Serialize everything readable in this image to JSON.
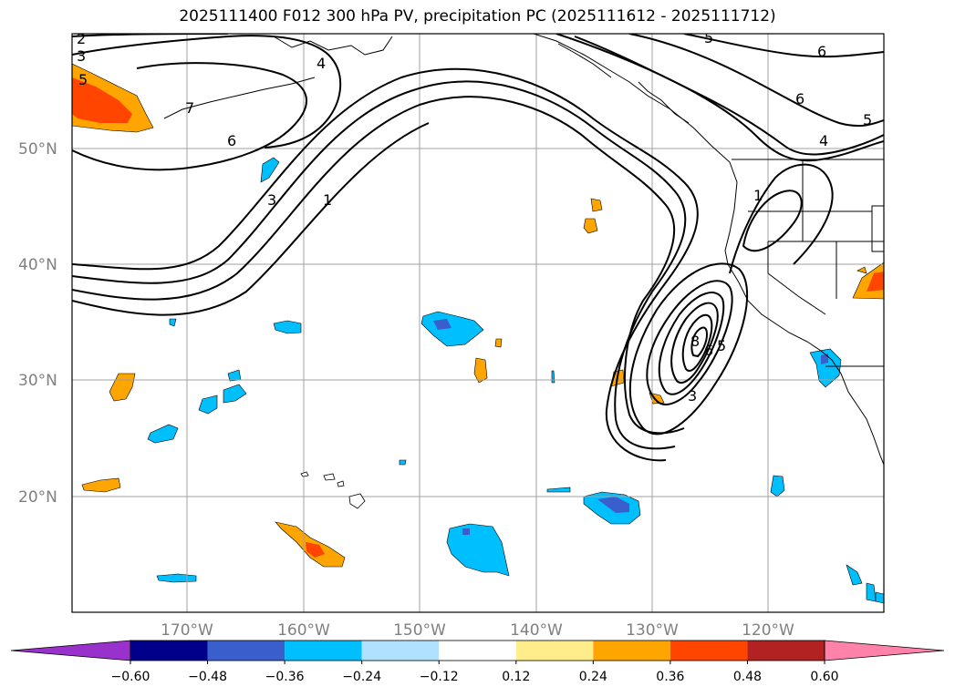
{
  "title": "2025111400 F012 300 hPa PV, precipitation PC (2025111612 - 2025111712)",
  "map": {
    "lon_labels": [
      "170°W",
      "160°W",
      "150°W",
      "140°W",
      "130°W",
      "120°W"
    ],
    "lat_labels": [
      "50°N",
      "40°N",
      "30°N",
      "20°N"
    ],
    "contour_labels": [
      "2",
      "3",
      "5",
      "7",
      "6",
      "3",
      "1",
      "4",
      "5",
      "6",
      "6",
      "5",
      "4",
      "8",
      "6",
      "5",
      "3",
      "1"
    ]
  },
  "colorbar": {
    "ticks": [
      "−0.60",
      "−0.48",
      "−0.36",
      "−0.24",
      "−0.12",
      "0.12",
      "0.24",
      "0.36",
      "0.48",
      "0.60"
    ],
    "colors": [
      "#9932cc",
      "#00008b",
      "#3a5fcd",
      "#00bfff",
      "#b0e2ff",
      "#ffffff",
      "#ffec8b",
      "#ffa500",
      "#ff4500",
      "#b22222",
      "#ff82ab"
    ]
  }
}
